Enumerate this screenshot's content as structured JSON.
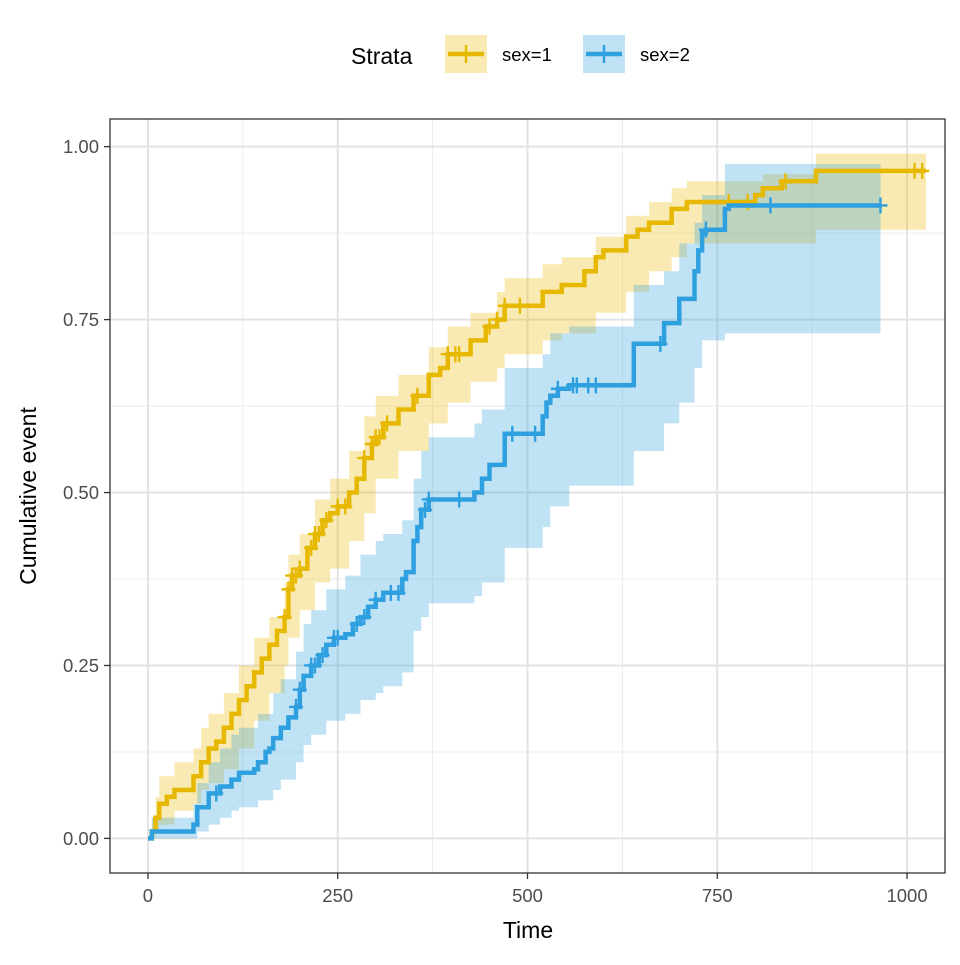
{
  "chart_data": {
    "type": "line",
    "subtype": "cumulative-event-step-with-confidence-bands",
    "title": "",
    "xlabel": "Time",
    "ylabel": "Cumulative event",
    "xlim": [
      -50,
      1050
    ],
    "ylim": [
      -0.05,
      1.04
    ],
    "x_ticks": [
      0,
      250,
      500,
      750,
      1000
    ],
    "x_tick_labels": [
      "0",
      "250",
      "500",
      "750",
      "1000"
    ],
    "y_ticks": [
      0,
      0.25,
      0.5,
      0.75,
      1
    ],
    "y_tick_labels": [
      "0.00",
      "0.25",
      "0.50",
      "0.75",
      "1.00"
    ],
    "grid": true,
    "legend": {
      "title": "Strata",
      "position": "top"
    },
    "series": [
      {
        "name": "sex=1",
        "color": "#E7B800",
        "step_points": [
          [
            0,
            0
          ],
          [
            5,
            0.01
          ],
          [
            10,
            0.03
          ],
          [
            15,
            0.05
          ],
          [
            25,
            0.06
          ],
          [
            35,
            0.07
          ],
          [
            60,
            0.09
          ],
          [
            70,
            0.11
          ],
          [
            80,
            0.13
          ],
          [
            90,
            0.14
          ],
          [
            100,
            0.16
          ],
          [
            110,
            0.18
          ],
          [
            120,
            0.2
          ],
          [
            130,
            0.22
          ],
          [
            140,
            0.24
          ],
          [
            150,
            0.26
          ],
          [
            160,
            0.28
          ],
          [
            170,
            0.3
          ],
          [
            180,
            0.32
          ],
          [
            185,
            0.36
          ],
          [
            190,
            0.38
          ],
          [
            200,
            0.39
          ],
          [
            210,
            0.42
          ],
          [
            220,
            0.44
          ],
          [
            230,
            0.46
          ],
          [
            240,
            0.47
          ],
          [
            250,
            0.48
          ],
          [
            265,
            0.5
          ],
          [
            275,
            0.52
          ],
          [
            285,
            0.55
          ],
          [
            295,
            0.57
          ],
          [
            300,
            0.58
          ],
          [
            310,
            0.6
          ],
          [
            330,
            0.62
          ],
          [
            350,
            0.64
          ],
          [
            370,
            0.67
          ],
          [
            385,
            0.68
          ],
          [
            395,
            0.7
          ],
          [
            425,
            0.72
          ],
          [
            445,
            0.74
          ],
          [
            460,
            0.75
          ],
          [
            470,
            0.77
          ],
          [
            520,
            0.79
          ],
          [
            545,
            0.8
          ],
          [
            575,
            0.82
          ],
          [
            590,
            0.84
          ],
          [
            600,
            0.85
          ],
          [
            630,
            0.87
          ],
          [
            645,
            0.88
          ],
          [
            660,
            0.89
          ],
          [
            690,
            0.91
          ],
          [
            710,
            0.92
          ],
          [
            800,
            0.93
          ],
          [
            810,
            0.94
          ],
          [
            835,
            0.95
          ],
          [
            880,
            0.965
          ],
          [
            1025,
            0.965
          ]
        ],
        "upper": [
          [
            0,
            0
          ],
          [
            5,
            0.03
          ],
          [
            10,
            0.06
          ],
          [
            15,
            0.09
          ],
          [
            35,
            0.11
          ],
          [
            60,
            0.13
          ],
          [
            70,
            0.16
          ],
          [
            80,
            0.18
          ],
          [
            100,
            0.21
          ],
          [
            120,
            0.25
          ],
          [
            140,
            0.29
          ],
          [
            160,
            0.32
          ],
          [
            180,
            0.37
          ],
          [
            185,
            0.41
          ],
          [
            200,
            0.44
          ],
          [
            220,
            0.49
          ],
          [
            240,
            0.52
          ],
          [
            265,
            0.56
          ],
          [
            285,
            0.61
          ],
          [
            300,
            0.64
          ],
          [
            330,
            0.67
          ],
          [
            370,
            0.71
          ],
          [
            395,
            0.74
          ],
          [
            425,
            0.76
          ],
          [
            460,
            0.79
          ],
          [
            470,
            0.81
          ],
          [
            520,
            0.83
          ],
          [
            545,
            0.84
          ],
          [
            590,
            0.87
          ],
          [
            630,
            0.9
          ],
          [
            660,
            0.92
          ],
          [
            690,
            0.94
          ],
          [
            710,
            0.95
          ],
          [
            810,
            0.96
          ],
          [
            880,
            0.99
          ],
          [
            1025,
            0.99
          ]
        ],
        "lower": [
          [
            0,
            0
          ],
          [
            5,
            0
          ],
          [
            10,
            0.01
          ],
          [
            15,
            0.02
          ],
          [
            35,
            0.04
          ],
          [
            60,
            0.05
          ],
          [
            70,
            0.07
          ],
          [
            80,
            0.08
          ],
          [
            100,
            0.1
          ],
          [
            120,
            0.13
          ],
          [
            140,
            0.17
          ],
          [
            160,
            0.21
          ],
          [
            180,
            0.25
          ],
          [
            185,
            0.29
          ],
          [
            200,
            0.33
          ],
          [
            220,
            0.37
          ],
          [
            240,
            0.39
          ],
          [
            265,
            0.43
          ],
          [
            285,
            0.47
          ],
          [
            300,
            0.52
          ],
          [
            330,
            0.56
          ],
          [
            370,
            0.6
          ],
          [
            395,
            0.63
          ],
          [
            425,
            0.66
          ],
          [
            460,
            0.68
          ],
          [
            470,
            0.7
          ],
          [
            520,
            0.72
          ],
          [
            545,
            0.73
          ],
          [
            590,
            0.76
          ],
          [
            630,
            0.79
          ],
          [
            660,
            0.82
          ],
          [
            690,
            0.84
          ],
          [
            710,
            0.86
          ],
          [
            810,
            0.86
          ],
          [
            880,
            0.88
          ],
          [
            1025,
            0.88
          ]
        ],
        "censor_times": [
          180,
          185,
          190,
          195,
          200,
          215,
          220,
          225,
          235,
          250,
          260,
          285,
          295,
          300,
          305,
          315,
          355,
          395,
          405,
          410,
          450,
          460,
          470,
          490,
          765,
          790,
          840,
          1010,
          1020
        ]
      },
      {
        "name": "sex=2",
        "color": "#2E9FDF",
        "step_points": [
          [
            0,
            0
          ],
          [
            5,
            0.01
          ],
          [
            60,
            0.02
          ],
          [
            65,
            0.045
          ],
          [
            80,
            0.065
          ],
          [
            95,
            0.075
          ],
          [
            110,
            0.085
          ],
          [
            120,
            0.095
          ],
          [
            140,
            0.1
          ],
          [
            145,
            0.11
          ],
          [
            155,
            0.125
          ],
          [
            160,
            0.13
          ],
          [
            165,
            0.145
          ],
          [
            175,
            0.16
          ],
          [
            185,
            0.175
          ],
          [
            195,
            0.19
          ],
          [
            200,
            0.215
          ],
          [
            205,
            0.235
          ],
          [
            215,
            0.25
          ],
          [
            225,
            0.265
          ],
          [
            235,
            0.28
          ],
          [
            245,
            0.29
          ],
          [
            260,
            0.295
          ],
          [
            270,
            0.31
          ],
          [
            280,
            0.32
          ],
          [
            290,
            0.335
          ],
          [
            300,
            0.345
          ],
          [
            310,
            0.355
          ],
          [
            335,
            0.375
          ],
          [
            340,
            0.385
          ],
          [
            350,
            0.43
          ],
          [
            355,
            0.45
          ],
          [
            360,
            0.475
          ],
          [
            370,
            0.49
          ],
          [
            430,
            0.5
          ],
          [
            440,
            0.52
          ],
          [
            450,
            0.54
          ],
          [
            470,
            0.585
          ],
          [
            520,
            0.61
          ],
          [
            525,
            0.63
          ],
          [
            530,
            0.64
          ],
          [
            540,
            0.65
          ],
          [
            555,
            0.655
          ],
          [
            640,
            0.715
          ],
          [
            680,
            0.745
          ],
          [
            700,
            0.78
          ],
          [
            720,
            0.82
          ],
          [
            725,
            0.85
          ],
          [
            730,
            0.875
          ],
          [
            735,
            0.88
          ],
          [
            760,
            0.91
          ],
          [
            765,
            0.915
          ],
          [
            965,
            0.915
          ]
        ],
        "upper": [
          [
            0,
            0
          ],
          [
            5,
            0.03
          ],
          [
            60,
            0.05
          ],
          [
            65,
            0.08
          ],
          [
            80,
            0.11
          ],
          [
            95,
            0.13
          ],
          [
            110,
            0.15
          ],
          [
            120,
            0.16
          ],
          [
            145,
            0.18
          ],
          [
            165,
            0.21
          ],
          [
            175,
            0.23
          ],
          [
            195,
            0.27
          ],
          [
            205,
            0.31
          ],
          [
            215,
            0.33
          ],
          [
            235,
            0.36
          ],
          [
            260,
            0.38
          ],
          [
            280,
            0.41
          ],
          [
            300,
            0.43
          ],
          [
            310,
            0.44
          ],
          [
            335,
            0.46
          ],
          [
            350,
            0.52
          ],
          [
            360,
            0.56
          ],
          [
            370,
            0.58
          ],
          [
            430,
            0.6
          ],
          [
            440,
            0.62
          ],
          [
            470,
            0.68
          ],
          [
            520,
            0.7
          ],
          [
            530,
            0.73
          ],
          [
            555,
            0.74
          ],
          [
            640,
            0.8
          ],
          [
            680,
            0.82
          ],
          [
            700,
            0.86
          ],
          [
            720,
            0.89
          ],
          [
            730,
            0.93
          ],
          [
            760,
            0.975
          ],
          [
            965,
            0.975
          ]
        ],
        "lower": [
          [
            0,
            0
          ],
          [
            5,
            0
          ],
          [
            60,
            0
          ],
          [
            65,
            0.01
          ],
          [
            80,
            0.02
          ],
          [
            95,
            0.03
          ],
          [
            110,
            0.04
          ],
          [
            120,
            0.045
          ],
          [
            145,
            0.055
          ],
          [
            165,
            0.07
          ],
          [
            175,
            0.085
          ],
          [
            195,
            0.11
          ],
          [
            205,
            0.135
          ],
          [
            215,
            0.15
          ],
          [
            235,
            0.17
          ],
          [
            260,
            0.18
          ],
          [
            280,
            0.2
          ],
          [
            300,
            0.21
          ],
          [
            310,
            0.22
          ],
          [
            335,
            0.24
          ],
          [
            350,
            0.3
          ],
          [
            360,
            0.32
          ],
          [
            370,
            0.34
          ],
          [
            430,
            0.35
          ],
          [
            440,
            0.37
          ],
          [
            470,
            0.42
          ],
          [
            520,
            0.45
          ],
          [
            530,
            0.48
          ],
          [
            555,
            0.51
          ],
          [
            640,
            0.56
          ],
          [
            680,
            0.6
          ],
          [
            700,
            0.63
          ],
          [
            720,
            0.68
          ],
          [
            730,
            0.72
          ],
          [
            760,
            0.73
          ],
          [
            965,
            0.73
          ]
        ],
        "censor_times": [
          90,
          195,
          200,
          215,
          220,
          230,
          245,
          250,
          275,
          285,
          300,
          320,
          330,
          365,
          370,
          410,
          480,
          510,
          540,
          560,
          565,
          580,
          590,
          675,
          735,
          820,
          965
        ]
      }
    ]
  }
}
